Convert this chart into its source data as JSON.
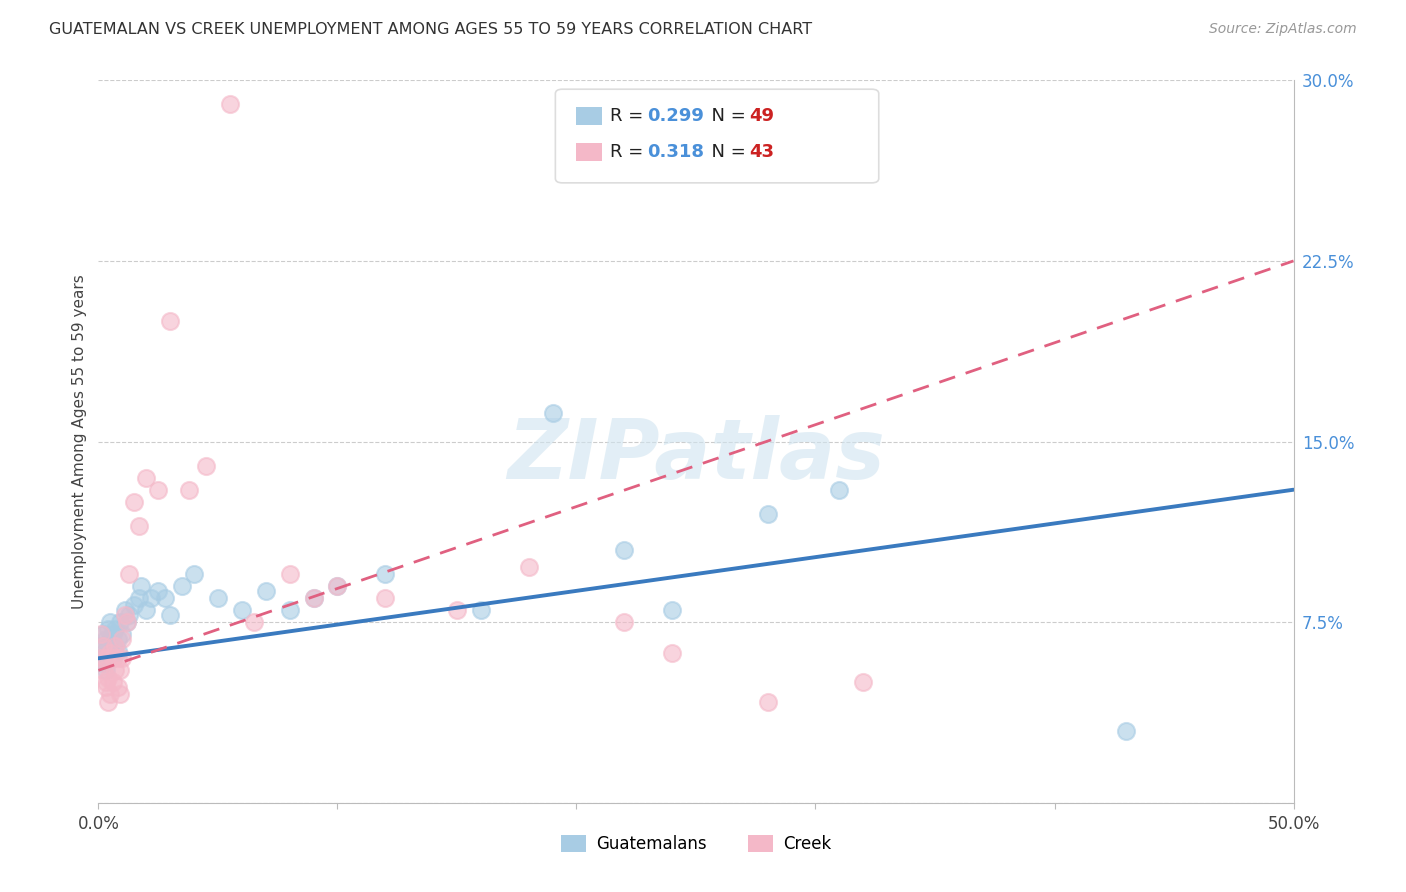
{
  "title": "GUATEMALAN VS CREEK UNEMPLOYMENT AMONG AGES 55 TO 59 YEARS CORRELATION CHART",
  "source": "Source: ZipAtlas.com",
  "ylabel": "Unemployment Among Ages 55 to 59 years",
  "xlim": [
    0,
    0.5
  ],
  "ylim": [
    0,
    0.3
  ],
  "xticks": [
    0.0,
    0.1,
    0.2,
    0.3,
    0.4,
    0.5
  ],
  "xticklabels": [
    "0.0%",
    "",
    "",
    "",
    "",
    "50.0%"
  ],
  "yticks": [
    0.0,
    0.075,
    0.15,
    0.225,
    0.3
  ],
  "yticklabels": [
    "",
    "7.5%",
    "15.0%",
    "22.5%",
    "30.0%"
  ],
  "guatemalan_R": 0.299,
  "guatemalan_N": 49,
  "creek_R": 0.318,
  "creek_N": 43,
  "blue_color": "#a8cce4",
  "pink_color": "#f4b8c8",
  "blue_line_color": "#3a7abf",
  "pink_line_color": "#e06080",
  "title_color": "#333333",
  "source_color": "#999999",
  "axis_label_color": "#444444",
  "tick_color": "#444444",
  "right_tick_color": "#4a90d9",
  "grid_color": "#cccccc",
  "watermark_color": "#d0e4f0",
  "legend_R_color": "#4a90d9",
  "legend_N_color": "#cc2222",
  "guatemalan_x": [
    0.001,
    0.001,
    0.002,
    0.002,
    0.002,
    0.003,
    0.003,
    0.003,
    0.004,
    0.004,
    0.004,
    0.005,
    0.005,
    0.005,
    0.006,
    0.006,
    0.007,
    0.007,
    0.008,
    0.008,
    0.009,
    0.01,
    0.011,
    0.012,
    0.013,
    0.015,
    0.017,
    0.018,
    0.02,
    0.022,
    0.025,
    0.028,
    0.03,
    0.035,
    0.04,
    0.05,
    0.06,
    0.07,
    0.08,
    0.09,
    0.1,
    0.12,
    0.16,
    0.19,
    0.22,
    0.24,
    0.28,
    0.31,
    0.43
  ],
  "guatemalan_y": [
    0.06,
    0.065,
    0.058,
    0.062,
    0.07,
    0.06,
    0.068,
    0.055,
    0.063,
    0.072,
    0.065,
    0.06,
    0.068,
    0.075,
    0.06,
    0.07,
    0.065,
    0.072,
    0.063,
    0.068,
    0.075,
    0.07,
    0.08,
    0.075,
    0.078,
    0.082,
    0.085,
    0.09,
    0.08,
    0.085,
    0.088,
    0.085,
    0.078,
    0.09,
    0.095,
    0.085,
    0.08,
    0.088,
    0.08,
    0.085,
    0.09,
    0.095,
    0.08,
    0.162,
    0.105,
    0.08,
    0.12,
    0.13,
    0.03
  ],
  "creek_x": [
    0.001,
    0.001,
    0.002,
    0.002,
    0.003,
    0.003,
    0.003,
    0.004,
    0.004,
    0.005,
    0.005,
    0.006,
    0.006,
    0.007,
    0.007,
    0.008,
    0.008,
    0.009,
    0.009,
    0.01,
    0.01,
    0.011,
    0.012,
    0.013,
    0.015,
    0.017,
    0.02,
    0.025,
    0.03,
    0.038,
    0.045,
    0.055,
    0.065,
    0.08,
    0.09,
    0.1,
    0.12,
    0.15,
    0.18,
    0.22,
    0.24,
    0.28,
    0.32
  ],
  "creek_y": [
    0.06,
    0.07,
    0.055,
    0.065,
    0.048,
    0.06,
    0.05,
    0.042,
    0.052,
    0.045,
    0.062,
    0.05,
    0.06,
    0.055,
    0.065,
    0.048,
    0.06,
    0.055,
    0.045,
    0.06,
    0.068,
    0.078,
    0.075,
    0.095,
    0.125,
    0.115,
    0.135,
    0.13,
    0.2,
    0.13,
    0.14,
    0.29,
    0.075,
    0.095,
    0.085,
    0.09,
    0.085,
    0.08,
    0.098,
    0.075,
    0.062,
    0.042,
    0.05
  ],
  "blue_trend_start": 0.06,
  "blue_trend_end": 0.13,
  "pink_trend_start": 0.055,
  "pink_trend_end": 0.225
}
